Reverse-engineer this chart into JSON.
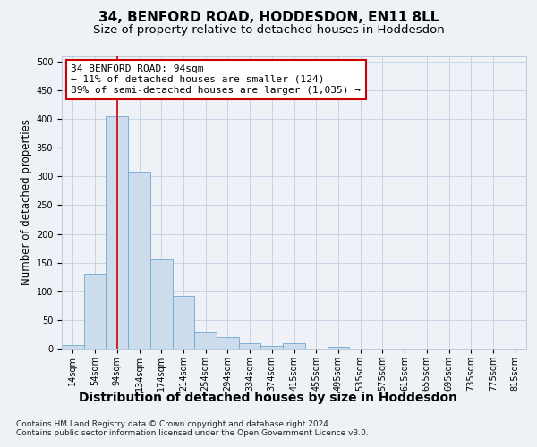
{
  "title": "34, BENFORD ROAD, HODDESDON, EN11 8LL",
  "subtitle": "Size of property relative to detached houses in Hoddesdon",
  "xlabel": "Distribution of detached houses by size in Hoddesdon",
  "ylabel": "Number of detached properties",
  "bar_labels": [
    "14sqm",
    "54sqm",
    "94sqm",
    "134sqm",
    "174sqm",
    "214sqm",
    "254sqm",
    "294sqm",
    "334sqm",
    "374sqm",
    "415sqm",
    "455sqm",
    "495sqm",
    "535sqm",
    "575sqm",
    "615sqm",
    "655sqm",
    "695sqm",
    "735sqm",
    "775sqm",
    "815sqm"
  ],
  "bar_values": [
    6,
    130,
    405,
    308,
    155,
    92,
    30,
    20,
    10,
    5,
    10,
    0,
    3,
    0,
    0,
    0,
    0,
    0,
    0,
    0,
    0
  ],
  "bar_color": "#cddcec",
  "bar_edgecolor": "#6fa8d0",
  "vline_x": 2,
  "vline_color": "#cc0000",
  "annotation_text": "34 BENFORD ROAD: 94sqm\n← 11% of detached houses are smaller (124)\n89% of semi-detached houses are larger (1,035) →",
  "annotation_box_color": "#ffffff",
  "annotation_box_edgecolor": "#cc0000",
  "ylim": [
    0,
    510
  ],
  "yticks": [
    0,
    50,
    100,
    150,
    200,
    250,
    300,
    350,
    400,
    450,
    500
  ],
  "footnote": "Contains HM Land Registry data © Crown copyright and database right 2024.\nContains public sector information licensed under the Open Government Licence v3.0.",
  "background_color": "#eef2f7",
  "plot_background": "#eef2f7",
  "grid_color": "#c0cfe0",
  "title_fontsize": 11,
  "subtitle_fontsize": 9.5,
  "xlabel_fontsize": 10,
  "ylabel_fontsize": 8.5,
  "annotation_fontsize": 8,
  "tick_fontsize": 7,
  "footnote_fontsize": 6.5
}
